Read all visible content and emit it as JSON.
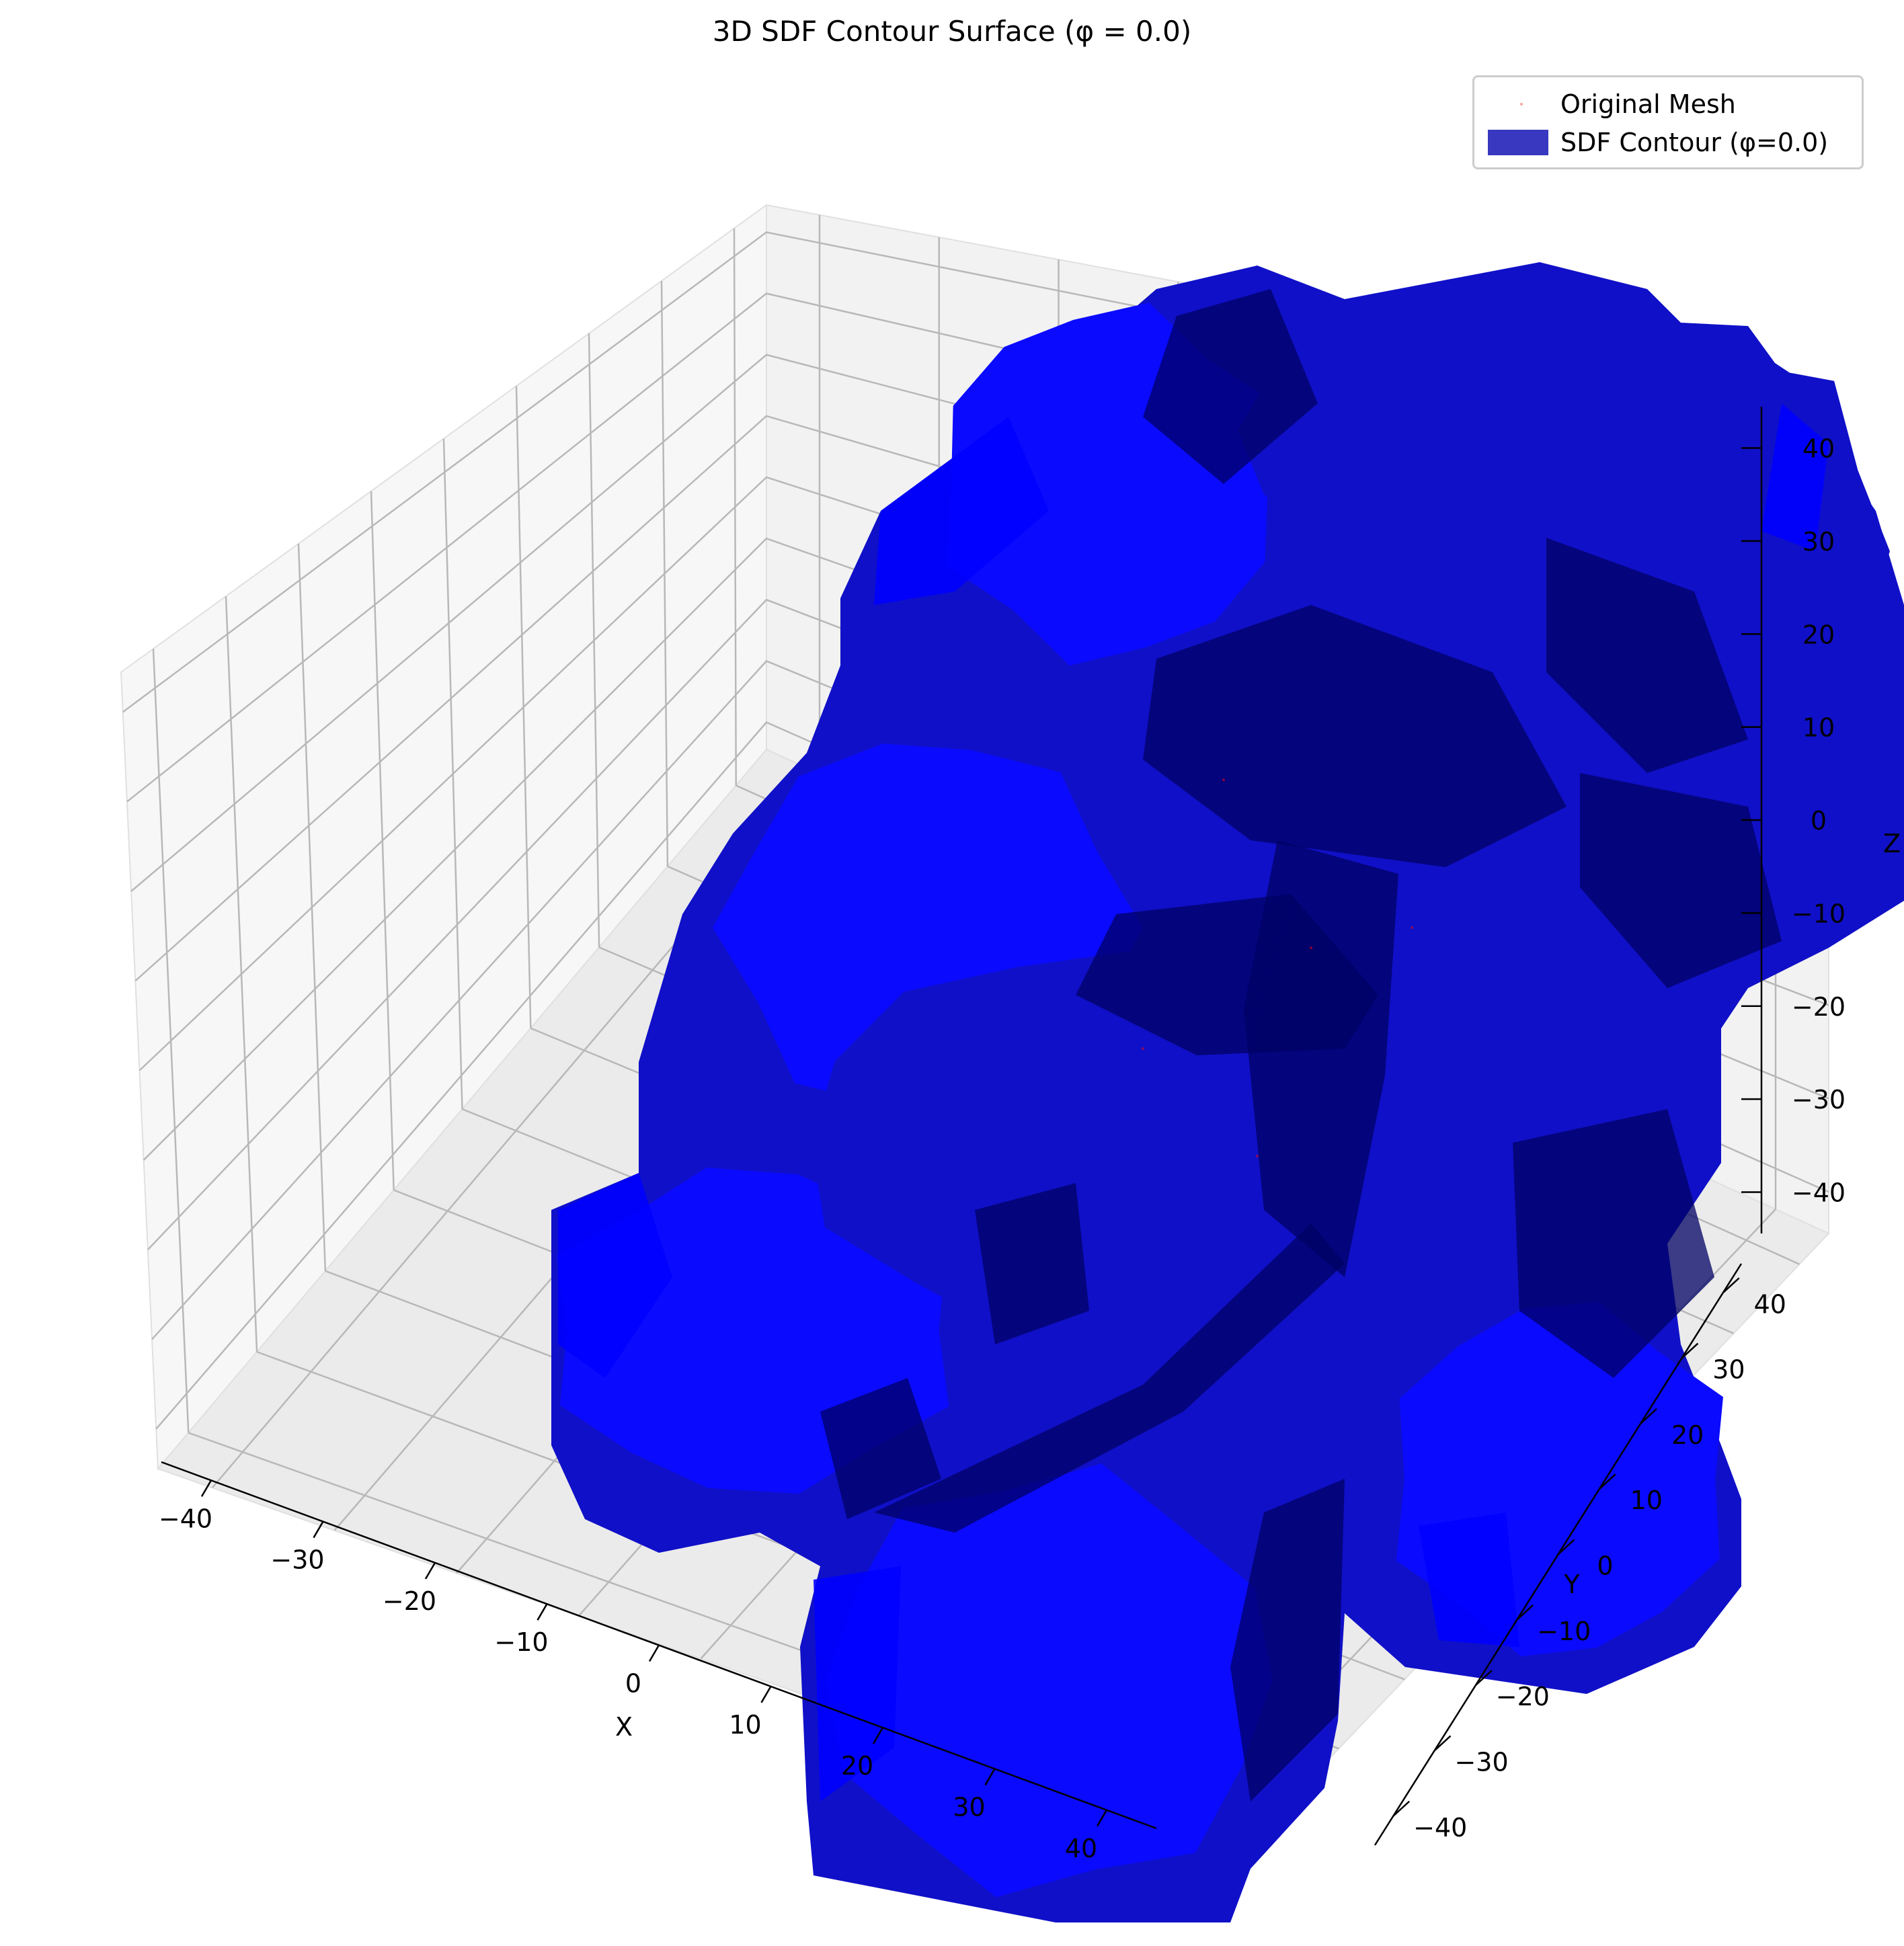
{
  "chart_data": {
    "type": "3d-surface",
    "title": "3D SDF Contour Surface (φ = 0.0)",
    "xlabel": "X",
    "ylabel": "Y",
    "zlabel": "Z",
    "xlim": [
      -45,
      45
    ],
    "ylim": [
      -45,
      45
    ],
    "zlim": [
      -45,
      45
    ],
    "x_ticks": [
      "−40",
      "−30",
      "−20",
      "−10",
      "0",
      "10",
      "20",
      "30",
      "40"
    ],
    "y_ticks": [
      "−40",
      "−30",
      "−20",
      "−10",
      "0",
      "10",
      "20",
      "30",
      "40"
    ],
    "z_ticks": [
      "−40",
      "−30",
      "−20",
      "−10",
      "0",
      "10",
      "20",
      "30",
      "40"
    ],
    "grid": true,
    "legend": {
      "placement": "top-right",
      "entries": [
        {
          "label": "Original Mesh",
          "marker": "point",
          "color": "#f4a6a6"
        },
        {
          "label": "SDF Contour (φ=0.0)",
          "marker": "patch",
          "color": "#3838c0"
        }
      ]
    },
    "series": [
      {
        "name": "Original Mesh",
        "kind": "scatter3d",
        "color": "#ff0000"
      },
      {
        "name": "SDF Contour (φ=0.0)",
        "kind": "isosurface",
        "level": 0.0,
        "color": "#0000ff"
      }
    ]
  },
  "colors": {
    "surface_light": "#0a0aff",
    "surface_mid": "#1010c8",
    "surface_dark": "#000064",
    "pane_fill": "#f2f2f2",
    "grid": "#b0b0b0"
  }
}
